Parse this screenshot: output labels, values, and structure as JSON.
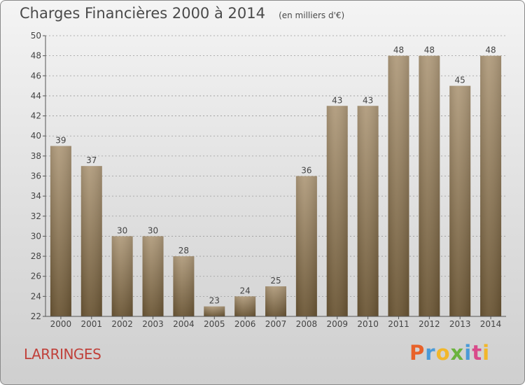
{
  "header": {
    "title": "Charges Financières 2000 à 2014",
    "subtitle": "(en milliers d'€)"
  },
  "footer": {
    "commune": "LARRINGES",
    "brand": [
      "P",
      "r",
      "o",
      "x",
      "i",
      "t",
      "i"
    ],
    "brand_colors": [
      "#e8622a",
      "#4a9ad8",
      "#f2b72a",
      "#6bb33d",
      "#4a9ad8",
      "#d94a8a",
      "#f2b72a"
    ]
  },
  "colors": {
    "bar_top": "#b09b7c",
    "bar_bottom": "#6a5534",
    "axis": "#555555",
    "grid": "#9a9a9a"
  },
  "chart_data": {
    "type": "bar",
    "title": "Charges Financières 2000 à 2014",
    "subtitle": "(en milliers d'€)",
    "categories": [
      "2000",
      "2001",
      "2002",
      "2003",
      "2004",
      "2005",
      "2006",
      "2007",
      "2008",
      "2009",
      "2010",
      "2011",
      "2012",
      "2013",
      "2014"
    ],
    "values": [
      39,
      37,
      30,
      30,
      28,
      23,
      24,
      25,
      36,
      43,
      43,
      48,
      48,
      45,
      48
    ],
    "ylim": [
      22,
      50
    ],
    "yticks": [
      22,
      24,
      26,
      28,
      30,
      32,
      34,
      36,
      38,
      40,
      42,
      44,
      46,
      48,
      50
    ],
    "grid": true,
    "xlabel": "",
    "ylabel": ""
  }
}
